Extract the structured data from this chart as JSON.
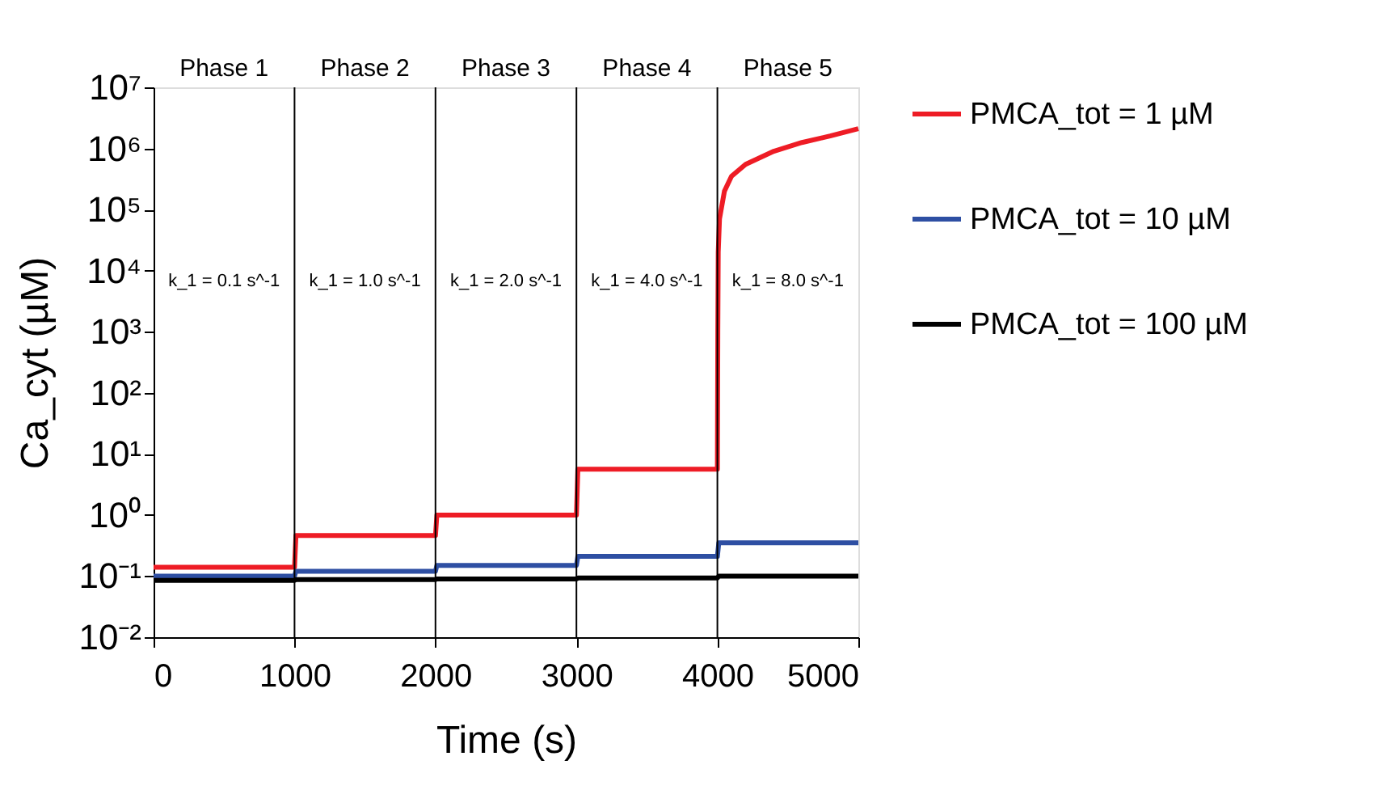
{
  "chart_data": {
    "type": "line",
    "xlabel": "Time (s)",
    "ylabel": "Ca_cyt (µM)",
    "xlim": [
      0,
      5000
    ],
    "xticks": [
      0,
      1000,
      2000,
      3000,
      4000,
      5000
    ],
    "ylim": [
      0.01,
      10000000
    ],
    "log": true,
    "yticks": [
      {
        "value": 0.01,
        "label": "10⁻²"
      },
      {
        "value": 0.1,
        "label": "10⁻¹"
      },
      {
        "value": 1,
        "label": "10⁰"
      },
      {
        "value": 10,
        "label": "10¹"
      },
      {
        "value": 100,
        "label": "10²"
      },
      {
        "value": 1000,
        "label": "10³"
      },
      {
        "value": 10000,
        "label": "10⁴"
      },
      {
        "value": 100000,
        "label": "10⁵"
      },
      {
        "value": 1000000,
        "label": "10⁶"
      },
      {
        "value": 10000000,
        "label": "10⁷"
      }
    ],
    "grid": false,
    "legend": "right",
    "marker": "none",
    "line_style": "solid",
    "series": [
      {
        "name": "PMCA_tot = 1 µM",
        "color": "#ee1c25",
        "x": [
          0,
          1000,
          1010,
          2000,
          2010,
          3000,
          3010,
          4000,
          4003,
          4006,
          4015,
          4050,
          4100,
          4200,
          4400,
          4600,
          4800,
          5000
        ],
        "values": [
          0.14,
          0.14,
          0.46,
          0.46,
          1.0,
          1.0,
          5.6,
          5.6,
          1000,
          20000,
          70000,
          200000,
          350000,
          550000,
          900000,
          1250000,
          1600000,
          2100000
        ]
      },
      {
        "name": "PMCA_tot = 10 µM",
        "color": "#2e4fa3",
        "x": [
          0,
          1000,
          1010,
          2000,
          2010,
          3000,
          3010,
          4000,
          4010,
          5000
        ],
        "values": [
          0.1,
          0.1,
          0.12,
          0.12,
          0.15,
          0.15,
          0.21,
          0.21,
          0.35,
          0.35
        ]
      },
      {
        "name": "PMCA_tot = 100 µM",
        "color": "#000000",
        "x": [
          0,
          1000,
          1010,
          2000,
          2010,
          3000,
          3010,
          4000,
          4010,
          5000
        ],
        "values": [
          0.085,
          0.085,
          0.088,
          0.088,
          0.09,
          0.09,
          0.093,
          0.093,
          0.1,
          0.1
        ]
      }
    ],
    "ref_lines": [
      {
        "axis": "x",
        "value": 1000,
        "color": "#000000"
      },
      {
        "axis": "x",
        "value": 2000,
        "color": "#000000"
      },
      {
        "axis": "x",
        "value": 3000,
        "color": "#000000"
      },
      {
        "axis": "x",
        "value": 4000,
        "color": "#000000"
      }
    ],
    "annotations": [
      "Phase 1",
      "Phase 2",
      "Phase 3",
      "Phase 4",
      "Phase 5",
      "k_1 = 0.1 s^-1",
      "k_1 = 1.0 s^-1",
      "k_1 = 2.0 s^-1",
      "k_1 = 4.0 s^-1",
      "k_1 = 8.0 s^-1"
    ]
  }
}
